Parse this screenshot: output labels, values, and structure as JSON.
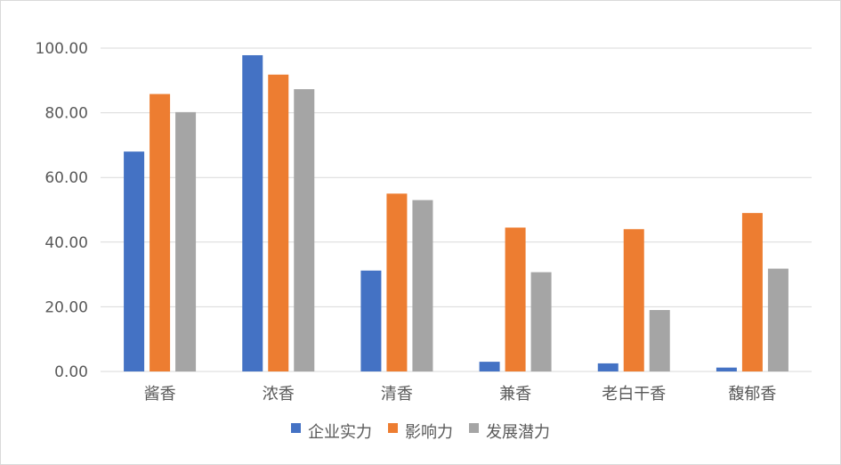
{
  "chart_data": {
    "type": "bar",
    "title": "",
    "xlabel": "",
    "ylabel": "",
    "categories": [
      "酱香",
      "浓香",
      "清香",
      "兼香",
      "老白干香",
      "馥郁香"
    ],
    "series": [
      {
        "name": "企业实力",
        "color": "#4472c4",
        "values": [
          68.0,
          97.8,
          31.2,
          3.0,
          2.5,
          1.2
        ]
      },
      {
        "name": "影响力",
        "color": "#ed7d31",
        "values": [
          85.8,
          91.8,
          55.0,
          44.5,
          44.0,
          49.0
        ]
      },
      {
        "name": "发展潜力",
        "color": "#a5a5a5",
        "values": [
          80.2,
          87.3,
          53.0,
          30.7,
          19.0,
          31.8
        ]
      }
    ],
    "ylim": [
      0,
      100
    ],
    "yticks": [
      "0.00",
      "20.00",
      "40.00",
      "60.00",
      "80.00",
      "100.00"
    ],
    "grid": true,
    "gridline_color": "#d9d9d9",
    "legend_position": "bottom"
  }
}
